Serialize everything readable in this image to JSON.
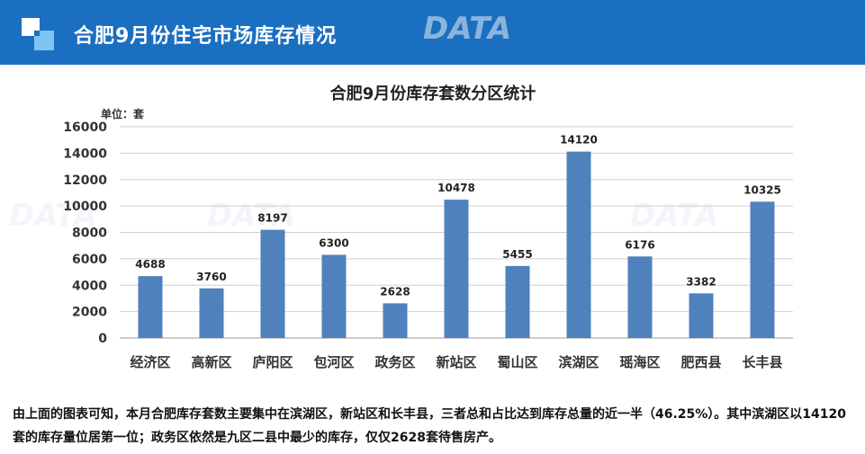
{
  "header": {
    "title": "合肥9月份住宅市场库存情况"
  },
  "chart_data": {
    "type": "bar",
    "title": "合肥9月份库存套数分区统计",
    "unit_label": "单位：套",
    "categories": [
      "经济区",
      "高新区",
      "庐阳区",
      "包河区",
      "政务区",
      "新站区",
      "蜀山区",
      "滨湖区",
      "瑶海区",
      "肥西县",
      "长丰县"
    ],
    "values": [
      4688,
      3760,
      8197,
      6300,
      2628,
      10478,
      5455,
      14120,
      6176,
      3382,
      10325
    ],
    "ylim": [
      0,
      16000
    ],
    "yticks": [
      0,
      2000,
      4000,
      6000,
      8000,
      10000,
      12000,
      14000,
      16000
    ],
    "grid": true,
    "legend": "none",
    "bar_color": "#4f81bd"
  },
  "summary": "由上面的图表可知，本月合肥库存套数主要集中在滨湖区，新站区和长丰县，三者总和占比达到库存总量的近一半（46.25%）。其中滨湖区以14120套的库存量位居第一位；政务区依然是九区二县中最少的库存，仅仅2628套待售房产。"
}
